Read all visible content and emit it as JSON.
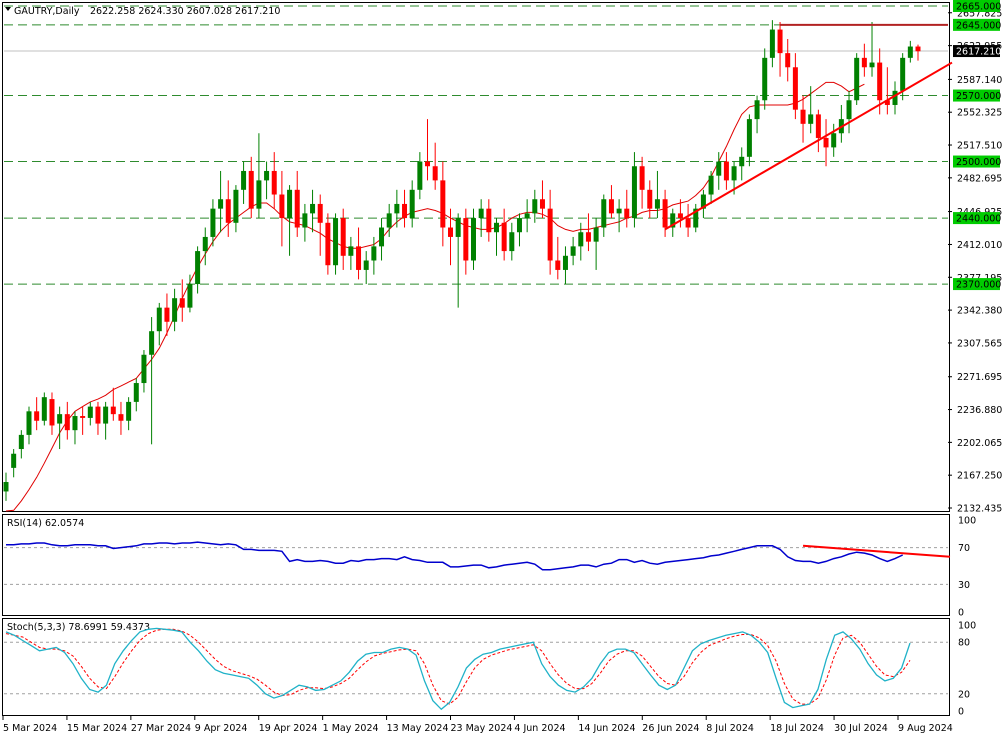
{
  "header": {
    "symbol": "GAUTRY,Daily",
    "ohlc": "2622.258 2624.330 2607.028 2617.210"
  },
  "colors": {
    "bull": "#008000",
    "bear": "#ff0000",
    "ma": "#e00000",
    "trend": "#ff0000",
    "resistance": "#b22222",
    "level_line": "#2e8b2e",
    "rsi": "#0000cd",
    "stoch_main": "#20b2c8",
    "stoch_signal": "#ff0000",
    "price_tag": "#000000",
    "level_tag": "#00cc00"
  },
  "price_axis": {
    "ymin": 2132.435,
    "ymax": 2665.0,
    "ticks": [
      "2657.825",
      "2622.955",
      "2587.140",
      "2552.325",
      "2517.510",
      "2482.695",
      "2446.925",
      "2412.010",
      "2377.195",
      "2342.380",
      "2307.565",
      "2271.695",
      "2236.880",
      "2202.065",
      "2167.250",
      "2132.435"
    ],
    "current_price": "2617.210"
  },
  "levels": [
    "2665.000",
    "2645.000",
    "2570.000",
    "2500.000",
    "2440.000",
    "2370.000"
  ],
  "rsi": {
    "label": "RSI(14) 62.0574",
    "ticks": [
      "100",
      "70",
      "30",
      "0"
    ],
    "values": [
      73,
      73,
      74,
      74,
      75,
      75,
      73,
      72,
      72,
      73,
      73,
      73,
      72,
      72,
      69,
      70,
      71,
      72,
      74,
      74,
      75,
      75,
      74,
      75,
      75,
      76,
      75,
      74,
      73,
      74,
      73,
      68,
      68,
      67,
      67,
      67,
      66,
      55,
      57,
      55,
      55,
      56,
      55,
      53,
      53,
      56,
      55,
      57,
      57,
      58,
      58,
      57,
      60,
      57,
      56,
      54,
      54,
      54,
      49,
      49,
      50,
      51,
      51,
      48,
      49,
      51,
      52,
      53,
      54,
      52,
      46,
      46,
      47,
      48,
      49,
      51,
      51,
      49,
      52,
      53,
      57,
      57,
      54,
      56,
      53,
      52,
      54,
      55,
      56,
      57,
      58,
      59,
      61,
      62,
      64,
      66,
      68,
      70,
      72,
      72,
      72,
      68,
      60,
      56,
      55,
      55,
      53,
      55,
      58,
      60,
      63,
      65,
      64,
      62,
      58,
      55,
      58,
      62
    ],
    "divergence_line": {
      "x": [
        104,
        132
      ],
      "y": [
        72,
        60
      ]
    }
  },
  "stoch": {
    "label": "Stoch(5,3,3) 78.6991 59.4373",
    "ticks": [
      "100",
      "80",
      "20",
      "0"
    ],
    "main": [
      92,
      88,
      82,
      76,
      70,
      72,
      74,
      68,
      55,
      38,
      25,
      22,
      30,
      55,
      70,
      82,
      92,
      95,
      96,
      95,
      94,
      92,
      80,
      70,
      58,
      48,
      44,
      42,
      40,
      38,
      30,
      20,
      15,
      18,
      24,
      30,
      28,
      24,
      25,
      30,
      35,
      45,
      58,
      66,
      68,
      68,
      72,
      74,
      72,
      65,
      35,
      12,
      2,
      10,
      28,
      50,
      60,
      66,
      68,
      72,
      74,
      76,
      78,
      80,
      55,
      40,
      30,
      24,
      22,
      28,
      38,
      55,
      68,
      72,
      72,
      68,
      55,
      42,
      30,
      25,
      30,
      50,
      70,
      78,
      82,
      85,
      88,
      90,
      92,
      88,
      80,
      68,
      38,
      10,
      4,
      6,
      8,
      25,
      60,
      88,
      92,
      84,
      72,
      55,
      42,
      35,
      38,
      50,
      79
    ],
    "signal": [
      90,
      88,
      86,
      80,
      74,
      72,
      72,
      70,
      64,
      52,
      38,
      28,
      26,
      40,
      56,
      70,
      82,
      90,
      94,
      95,
      95,
      93,
      88,
      80,
      70,
      60,
      52,
      47,
      44,
      41,
      37,
      30,
      22,
      18,
      19,
      24,
      27,
      27,
      26,
      28,
      32,
      38,
      48,
      57,
      64,
      67,
      69,
      71,
      72,
      70,
      55,
      30,
      12,
      8,
      16,
      34,
      50,
      60,
      65,
      68,
      71,
      73,
      75,
      77,
      70,
      55,
      42,
      32,
      26,
      26,
      32,
      44,
      58,
      66,
      70,
      70,
      64,
      52,
      40,
      32,
      30,
      40,
      56,
      68,
      76,
      80,
      84,
      87,
      89,
      89,
      85,
      76,
      58,
      32,
      14,
      8,
      8,
      15,
      36,
      65,
      85,
      88,
      80,
      66,
      52,
      42,
      40,
      45,
      59
    ]
  },
  "x_labels": [
    "5 Mar 2024",
    "15 Mar 2024",
    "27 Mar 2024",
    "9 Apr 2024",
    "19 Apr 2024",
    "1 May 2024",
    "13 May 2024",
    "23 May 2024",
    "4 Jun 2024",
    "14 Jun 2024",
    "26 Jun 2024",
    "8 Jul 2024",
    "18 Jul 2024",
    "30 Jul 2024",
    "9 Aug 2024"
  ],
  "chart_data": {
    "type": "candlestick",
    "title": "GAUTRY,Daily",
    "ylim": [
      2132.435,
      2665.0
    ],
    "ma_values": [
      2120,
      2130,
      2140,
      2152,
      2165,
      2180,
      2196,
      2212,
      2225,
      2235,
      2240,
      2245,
      2248,
      2252,
      2258,
      2262,
      2266,
      2270,
      2280,
      2290,
      2302,
      2318,
      2336,
      2355,
      2372,
      2388,
      2402,
      2415,
      2426,
      2434,
      2440,
      2446,
      2452,
      2456,
      2456,
      2450,
      2442,
      2436,
      2434,
      2432,
      2428,
      2424,
      2418,
      2414,
      2410,
      2408,
      2408,
      2410,
      2412,
      2418,
      2428,
      2436,
      2442,
      2446,
      2448,
      2450,
      2448,
      2445,
      2440,
      2436,
      2432,
      2430,
      2428,
      2428,
      2430,
      2434,
      2440,
      2444,
      2446,
      2446,
      2444,
      2440,
      2432,
      2428,
      2426,
      2428,
      2428,
      2430,
      2432,
      2434,
      2436,
      2440,
      2442,
      2446,
      2448,
      2448,
      2450,
      2454,
      2456,
      2458,
      2464,
      2472,
      2484,
      2500,
      2516,
      2534,
      2550,
      2558,
      2560,
      2560,
      2560,
      2560,
      2560,
      2562,
      2566,
      2572,
      2578,
      2584,
      2584,
      2580,
      2574,
      2578,
      2582
    ],
    "candles": [
      [
        2150,
        2170,
        2140,
        2160
      ],
      [
        2175,
        2195,
        2165,
        2190
      ],
      [
        2195,
        2215,
        2185,
        2210
      ],
      [
        2210,
        2240,
        2200,
        2235
      ],
      [
        2235,
        2250,
        2215,
        2225
      ],
      [
        2225,
        2255,
        2220,
        2250
      ],
      [
        2248,
        2255,
        2210,
        2220
      ],
      [
        2222,
        2240,
        2195,
        2232
      ],
      [
        2232,
        2245,
        2205,
        2215
      ],
      [
        2215,
        2235,
        2200,
        2230
      ],
      [
        2230,
        2240,
        2210,
        2228
      ],
      [
        2228,
        2245,
        2220,
        2240
      ],
      [
        2240,
        2245,
        2210,
        2222
      ],
      [
        2222,
        2245,
        2205,
        2240
      ],
      [
        2240,
        2260,
        2225,
        2232
      ],
      [
        2232,
        2245,
        2210,
        2225
      ],
      [
        2225,
        2250,
        2215,
        2245
      ],
      [
        2245,
        2270,
        2235,
        2265
      ],
      [
        2265,
        2300,
        2255,
        2295
      ],
      [
        2295,
        2335,
        2200,
        2320
      ],
      [
        2320,
        2350,
        2305,
        2345
      ],
      [
        2345,
        2360,
        2315,
        2330
      ],
      [
        2330,
        2365,
        2320,
        2355
      ],
      [
        2355,
        2375,
        2330,
        2345
      ],
      [
        2345,
        2380,
        2340,
        2370
      ],
      [
        2370,
        2410,
        2360,
        2405
      ],
      [
        2405,
        2430,
        2390,
        2420
      ],
      [
        2420,
        2460,
        2410,
        2450
      ],
      [
        2450,
        2490,
        2425,
        2460
      ],
      [
        2460,
        2480,
        2420,
        2435
      ],
      [
        2435,
        2475,
        2425,
        2470
      ],
      [
        2470,
        2500,
        2455,
        2490
      ],
      [
        2490,
        2505,
        2440,
        2450
      ],
      [
        2450,
        2530,
        2440,
        2480
      ],
      [
        2480,
        2500,
        2460,
        2490
      ],
      [
        2490,
        2510,
        2450,
        2465
      ],
      [
        2465,
        2490,
        2410,
        2440
      ],
      [
        2440,
        2475,
        2400,
        2470
      ],
      [
        2470,
        2490,
        2420,
        2430
      ],
      [
        2430,
        2455,
        2415,
        2445
      ],
      [
        2445,
        2470,
        2425,
        2455
      ],
      [
        2455,
        2465,
        2400,
        2435
      ],
      [
        2435,
        2445,
        2380,
        2390
      ],
      [
        2390,
        2445,
        2380,
        2440
      ],
      [
        2440,
        2450,
        2385,
        2400
      ],
      [
        2400,
        2420,
        2385,
        2410
      ],
      [
        2410,
        2430,
        2375,
        2385
      ],
      [
        2385,
        2405,
        2370,
        2395
      ],
      [
        2395,
        2420,
        2380,
        2410
      ],
      [
        2410,
        2440,
        2395,
        2430
      ],
      [
        2430,
        2455,
        2420,
        2445
      ],
      [
        2445,
        2470,
        2430,
        2455
      ],
      [
        2455,
        2470,
        2430,
        2440
      ],
      [
        2440,
        2480,
        2430,
        2470
      ],
      [
        2470,
        2510,
        2460,
        2500
      ],
      [
        2500,
        2545,
        2480,
        2495
      ],
      [
        2495,
        2520,
        2470,
        2480
      ],
      [
        2480,
        2500,
        2410,
        2430
      ],
      [
        2430,
        2450,
        2390,
        2420
      ],
      [
        2420,
        2445,
        2345,
        2440
      ],
      [
        2440,
        2450,
        2380,
        2395
      ],
      [
        2395,
        2450,
        2385,
        2440
      ],
      [
        2440,
        2460,
        2420,
        2450
      ],
      [
        2450,
        2460,
        2415,
        2425
      ],
      [
        2425,
        2440,
        2400,
        2435
      ],
      [
        2435,
        2450,
        2395,
        2405
      ],
      [
        2405,
        2435,
        2395,
        2425
      ],
      [
        2425,
        2445,
        2410,
        2440
      ],
      [
        2440,
        2460,
        2425,
        2445
      ],
      [
        2445,
        2470,
        2435,
        2460
      ],
      [
        2460,
        2480,
        2440,
        2450
      ],
      [
        2450,
        2470,
        2380,
        2395
      ],
      [
        2395,
        2420,
        2375,
        2385
      ],
      [
        2385,
        2410,
        2370,
        2400
      ],
      [
        2400,
        2420,
        2390,
        2410
      ],
      [
        2410,
        2435,
        2395,
        2425
      ],
      [
        2425,
        2445,
        2405,
        2415
      ],
      [
        2415,
        2440,
        2385,
        2430
      ],
      [
        2430,
        2465,
        2420,
        2460
      ],
      [
        2460,
        2475,
        2440,
        2445
      ],
      [
        2445,
        2460,
        2425,
        2450
      ],
      [
        2450,
        2470,
        2430,
        2440
      ],
      [
        2440,
        2510,
        2430,
        2495
      ],
      [
        2495,
        2505,
        2450,
        2470
      ],
      [
        2470,
        2480,
        2440,
        2450
      ],
      [
        2450,
        2490,
        2440,
        2460
      ],
      [
        2460,
        2470,
        2420,
        2430
      ],
      [
        2430,
        2450,
        2420,
        2445
      ],
      [
        2445,
        2460,
        2430,
        2440
      ],
      [
        2440,
        2455,
        2420,
        2430
      ],
      [
        2430,
        2455,
        2425,
        2450
      ],
      [
        2450,
        2470,
        2440,
        2465
      ],
      [
        2465,
        2490,
        2455,
        2485
      ],
      [
        2485,
        2510,
        2470,
        2500
      ],
      [
        2500,
        2510,
        2470,
        2480
      ],
      [
        2480,
        2500,
        2465,
        2495
      ],
      [
        2495,
        2515,
        2480,
        2505
      ],
      [
        2505,
        2550,
        2495,
        2545
      ],
      [
        2545,
        2570,
        2530,
        2565
      ],
      [
        2565,
        2620,
        2555,
        2610
      ],
      [
        2610,
        2650,
        2600,
        2640
      ],
      [
        2640,
        2648,
        2590,
        2615
      ],
      [
        2615,
        2630,
        2585,
        2600
      ],
      [
        2600,
        2615,
        2545,
        2555
      ],
      [
        2555,
        2570,
        2520,
        2540
      ],
      [
        2540,
        2580,
        2530,
        2550
      ],
      [
        2550,
        2555,
        2510,
        2525
      ],
      [
        2525,
        2545,
        2495,
        2515
      ],
      [
        2515,
        2540,
        2505,
        2530
      ],
      [
        2530,
        2560,
        2520,
        2545
      ],
      [
        2545,
        2575,
        2530,
        2565
      ],
      [
        2565,
        2615,
        2560,
        2610
      ],
      [
        2610,
        2625,
        2590,
        2600
      ],
      [
        2600,
        2648,
        2590,
        2605
      ],
      [
        2605,
        2620,
        2550,
        2565
      ],
      [
        2565,
        2600,
        2550,
        2560
      ],
      [
        2560,
        2585,
        2550,
        2575
      ],
      [
        2575,
        2615,
        2565,
        2610
      ],
      [
        2610,
        2628,
        2605,
        2622
      ],
      [
        2622,
        2624,
        2607,
        2617
      ]
    ]
  }
}
